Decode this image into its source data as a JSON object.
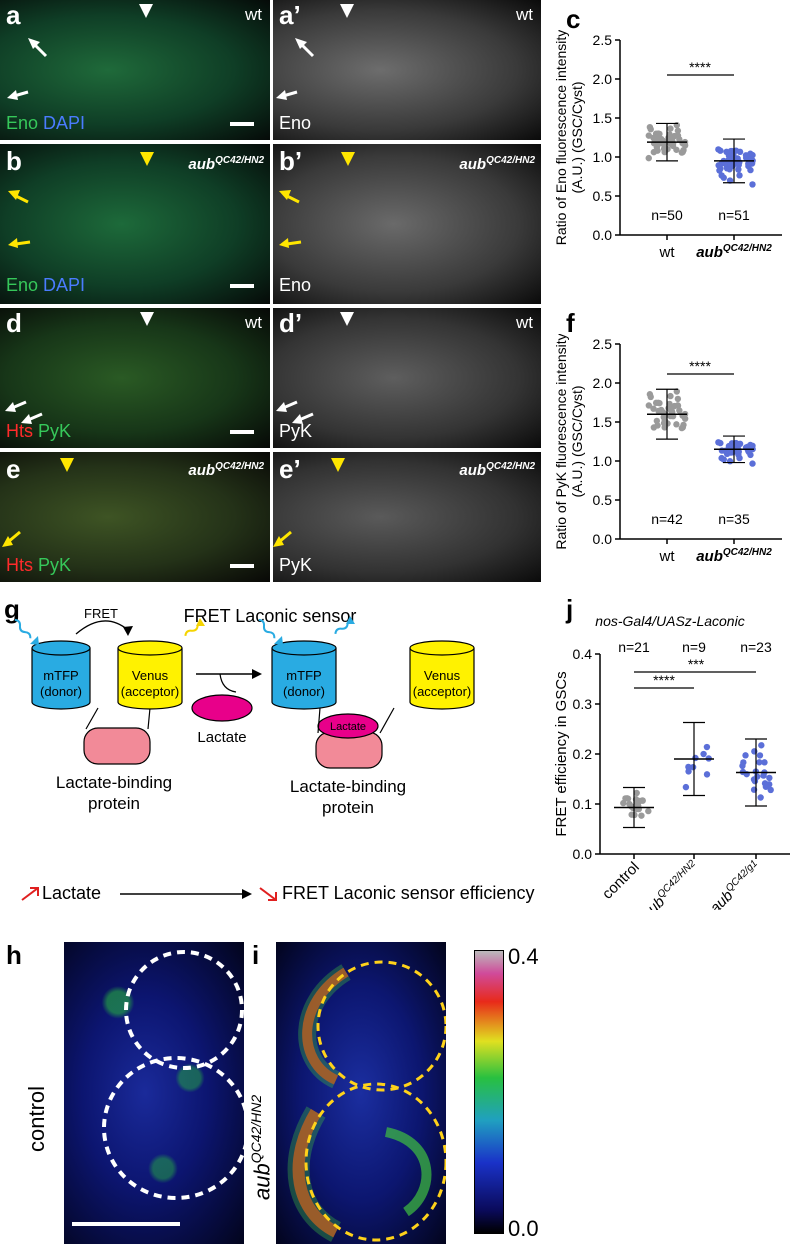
{
  "panels": {
    "a": {
      "letter": "a",
      "genotype": "wt",
      "stain1": "Eno",
      "stain2": "DAPI"
    },
    "a2": {
      "letter": "a’",
      "genotype": "wt",
      "stain": "Eno"
    },
    "b": {
      "letter": "b",
      "genotype_base": "aub",
      "genotype_sup": "QC42/HN2",
      "stain1": "Eno",
      "stain2": "DAPI"
    },
    "b2": {
      "letter": "b’",
      "genotype_base": "aub",
      "genotype_sup": "QC42/HN2",
      "stain": "Eno"
    },
    "d": {
      "letter": "d",
      "genotype": "wt",
      "stain1": "Hts",
      "stain2": "PyK"
    },
    "d2": {
      "letter": "d’",
      "genotype": "wt",
      "stain": "PyK"
    },
    "e": {
      "letter": "e",
      "genotype_base": "aub",
      "genotype_sup": "QC42/HN2",
      "stain1": "Hts",
      "stain2": "PyK"
    },
    "e2": {
      "letter": "e’",
      "genotype_base": "aub",
      "genotype_sup": "QC42/HN2",
      "stain": "PyK"
    }
  },
  "chart_c": {
    "letter": "c",
    "chart_data": {
      "type": "scatter",
      "ylabel_line1": "Ratio of Eno fluorescence intensity",
      "ylabel_line2": "(A.U.) (GSC/Cyst)",
      "ylim": [
        0,
        2.5
      ],
      "yticks": [
        "0.0",
        "0.5",
        "1.0",
        "1.5",
        "2.0",
        "2.5"
      ],
      "categories": [
        "wt",
        "aub"
      ],
      "category_sups": [
        "",
        "QC42/HN2"
      ],
      "n_labels": [
        "n=50",
        "n=51"
      ],
      "means": [
        1.19,
        0.95
      ],
      "sds": [
        0.24,
        0.28
      ],
      "significance": "****",
      "colors": [
        "#9a9a9a",
        "#5b6fd8"
      ]
    }
  },
  "chart_f": {
    "letter": "f",
    "chart_data": {
      "type": "scatter",
      "ylabel_line1": "Ratio of PyK fluorescence intensity",
      "ylabel_line2": "(A.U.) (GSC/Cyst)",
      "ylim": [
        0,
        2.5
      ],
      "yticks": [
        "0.0",
        "0.5",
        "1.0",
        "1.5",
        "2.0",
        "2.5"
      ],
      "categories": [
        "wt",
        "aub"
      ],
      "category_sups": [
        "",
        "QC42/HN2"
      ],
      "n_labels": [
        "n=42",
        "n=35"
      ],
      "means": [
        1.6,
        1.15
      ],
      "sds": [
        0.32,
        0.17
      ],
      "significance": "****",
      "colors": [
        "#9a9a9a",
        "#5b6fd8"
      ]
    }
  },
  "chart_j": {
    "letter": "j",
    "chart_data": {
      "type": "scatter",
      "title_base": "nos-Gal4/UASz-Laconic",
      "ylabel": "FRET efficiency in GSCs",
      "ylim": [
        0,
        0.4
      ],
      "yticks": [
        "0.0",
        "0.1",
        "0.2",
        "0.3",
        "0.4"
      ],
      "categories": [
        "control",
        "aub",
        "aub"
      ],
      "category_sups": [
        "",
        "QC42/HN2",
        "QC42/g1"
      ],
      "n_labels": [
        "n=21",
        "n=9",
        "n=23"
      ],
      "means": [
        0.093,
        0.19,
        0.163
      ],
      "sds": [
        0.04,
        0.073,
        0.067
      ],
      "significance": [
        "****",
        "***"
      ],
      "colors": [
        "#9a9a9a",
        "#5b6fd8",
        "#5b6fd8"
      ]
    }
  },
  "diagram_g": {
    "letter": "g",
    "title": "FRET Laconic sensor",
    "fret": "FRET",
    "donor_name": "mTFP",
    "donor_role": "(donor)",
    "acceptor_name": "Venus",
    "acceptor_role": "(acceptor)",
    "binding_line1": "Lactate-binding",
    "binding_line2": "protein",
    "lactate": "Lactate",
    "bottom_left": "Lactate",
    "bottom_right": "FRET Laconic sensor efficiency",
    "colors": {
      "donor": "#29abe2",
      "acceptor": "#fff200",
      "binding": "#f28a98",
      "lactate": "#e8008a"
    }
  },
  "panel_h": {
    "letter": "h",
    "side_label": "control"
  },
  "panel_i": {
    "letter": "i",
    "side_label_base": "aub",
    "side_label_sup": "QC42/HN2"
  },
  "colorbar": {
    "max": "0.4",
    "min": "0.0"
  }
}
